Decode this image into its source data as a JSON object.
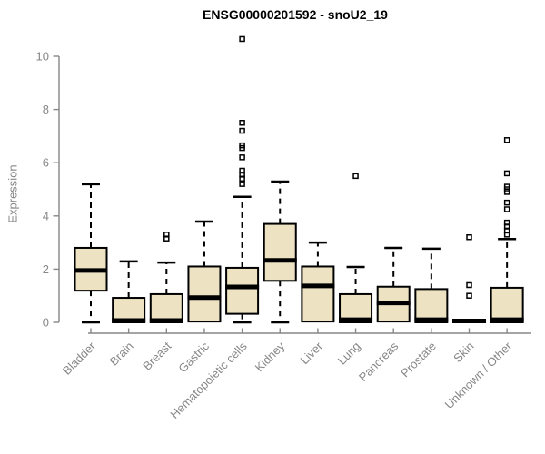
{
  "chart_data": {
    "type": "boxplot",
    "title": "ENSG00000201592 - snoU2_19",
    "ylabel": "Expression",
    "xlabel": "",
    "ylim": [
      0,
      10
    ],
    "yticks": [
      0,
      2,
      4,
      6,
      8,
      10
    ],
    "grid": false,
    "legend": "none",
    "categories": [
      "Bladder",
      "Brain",
      "Breast",
      "Gastric",
      "Hematopoietic cells",
      "Kidney",
      "Liver",
      "Lung",
      "Pancreas",
      "Prostate",
      "Skin",
      "Unknown / Other"
    ],
    "series": [
      {
        "name": "Bladder",
        "min": 0,
        "q1": 1.19,
        "median": 1.95,
        "q3": 2.8,
        "max": 5.19,
        "outliers": []
      },
      {
        "name": "Brain",
        "min": 0,
        "q1": 0,
        "median": 0.07,
        "q3": 0.92,
        "max": 2.29,
        "outliers": []
      },
      {
        "name": "Breast",
        "min": 0,
        "q1": 0,
        "median": 0.07,
        "q3": 1.06,
        "max": 2.25,
        "outliers": [
          3.15,
          3.3
        ]
      },
      {
        "name": "Gastric",
        "min": 0.03,
        "q1": 0.03,
        "median": 0.93,
        "q3": 2.1,
        "max": 3.79,
        "outliers": []
      },
      {
        "name": "Hematopoietic cells",
        "min": 0,
        "q1": 0.32,
        "median": 1.33,
        "q3": 2.05,
        "max": 4.72,
        "outliers": [
          5.2,
          5.4,
          5.55,
          5.7,
          6.2,
          6.55,
          6.65,
          7.2,
          7.5,
          10.65
        ]
      },
      {
        "name": "Kidney",
        "min": 0,
        "q1": 1.56,
        "median": 2.33,
        "q3": 3.7,
        "max": 5.29,
        "outliers": []
      },
      {
        "name": "Liver",
        "min": 0.03,
        "q1": 0.03,
        "median": 1.37,
        "q3": 2.1,
        "max": 3.0,
        "outliers": []
      },
      {
        "name": "Lung",
        "min": 0,
        "q1": 0,
        "median": 0.1,
        "q3": 1.06,
        "max": 2.08,
        "outliers": [
          5.5
        ]
      },
      {
        "name": "Pancreas",
        "min": 0.03,
        "q1": 0.03,
        "median": 0.73,
        "q3": 1.34,
        "max": 2.8,
        "outliers": []
      },
      {
        "name": "Prostate",
        "min": 0,
        "q1": 0,
        "median": 0.1,
        "q3": 1.25,
        "max": 2.77,
        "outliers": []
      },
      {
        "name": "Skin",
        "min": 0.05,
        "q1": 0.05,
        "median": 0.05,
        "q3": 0.05,
        "max": 0.05,
        "outliers": [
          1.0,
          1.4,
          3.2
        ]
      },
      {
        "name": "Unknown / Other",
        "min": 0,
        "q1": 0,
        "median": 0.1,
        "q3": 1.3,
        "max": 3.13,
        "outliers": [
          3.3,
          3.45,
          3.6,
          3.75,
          4.25,
          4.5,
          4.9,
          5.0,
          5.1,
          5.6,
          6.85
        ]
      }
    ],
    "colors": {
      "box_fill": "#EDE3C2",
      "box_border": "#000000",
      "median": "#000000",
      "axis": "#878787",
      "tick_label": "#878787",
      "title": "#000000",
      "background": "#FFFFFF"
    }
  }
}
